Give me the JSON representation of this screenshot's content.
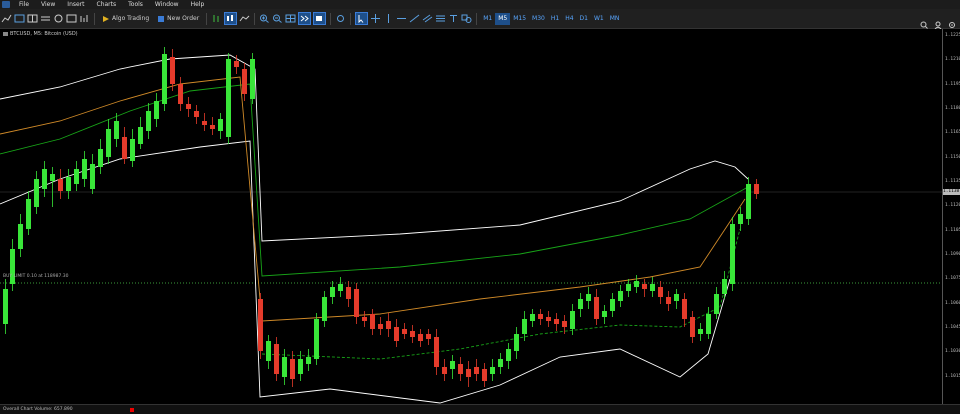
{
  "menu": {
    "items": [
      "File",
      "View",
      "Insert",
      "Charts",
      "Tools",
      "Window",
      "Help"
    ]
  },
  "toolbar": {
    "algo_trading_label": "Algo Trading",
    "new_order_label": "New Order",
    "timeframes": [
      "M1",
      "M5",
      "M15",
      "M30",
      "H1",
      "H4",
      "D1",
      "W1",
      "MN"
    ],
    "selected_timeframe": "M5"
  },
  "chart": {
    "symbol_label": "BTCUSD, M5: Bitcoin (USD)",
    "level_label": "BUY LIMIT 0.10 at 118987.30",
    "price_ticks": [
      "1.1225",
      "1.1210",
      "1.1195",
      "1.1180",
      "1.1165",
      "1.1150",
      "1.1135",
      "1.1120",
      "1.1105",
      "1.1090",
      "1.1075",
      "1.1060",
      "1.1045",
      "1.1030",
      "1.1015"
    ],
    "current_price": "1.1138",
    "colors": {
      "bull": "#39e639",
      "bear": "#e53b2b",
      "band_outer": "#ffffff",
      "band_mid": "#18a418",
      "band_inner": "#d08a28",
      "level_line": "#3a9a3a"
    }
  },
  "status": {
    "text": "Overall Chart Volume: 657.890"
  }
}
